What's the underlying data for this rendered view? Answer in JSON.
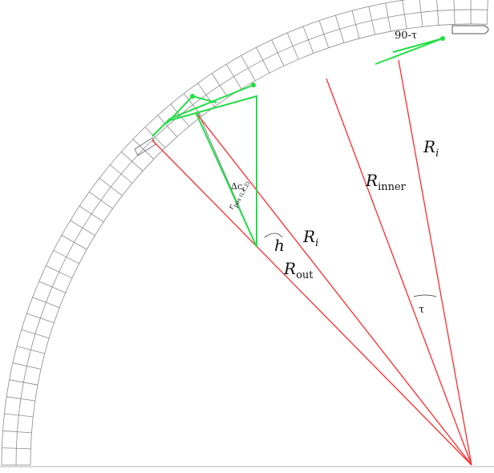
{
  "labels": {
    "r_i_right": "R",
    "r_i_right_sub": "i",
    "r_inner": "R",
    "r_inner_sub": "inner",
    "r_i_left": "R",
    "r_i_left_sub": "i",
    "r_out": "R",
    "r_out_sub": "out",
    "h": "h",
    "tau": "τ",
    "ninety_minus_tau": "90-τ",
    "delta_c": "Δc",
    "delta_c_sub": "i",
    "r_small": "r",
    "r_small_sub": "pos (i,1,2)"
  },
  "colors": {
    "radius_lines": "#ff2a2a",
    "ray_paths": "#22dd44",
    "grid": "#8a8a8a",
    "text": "#111111"
  }
}
